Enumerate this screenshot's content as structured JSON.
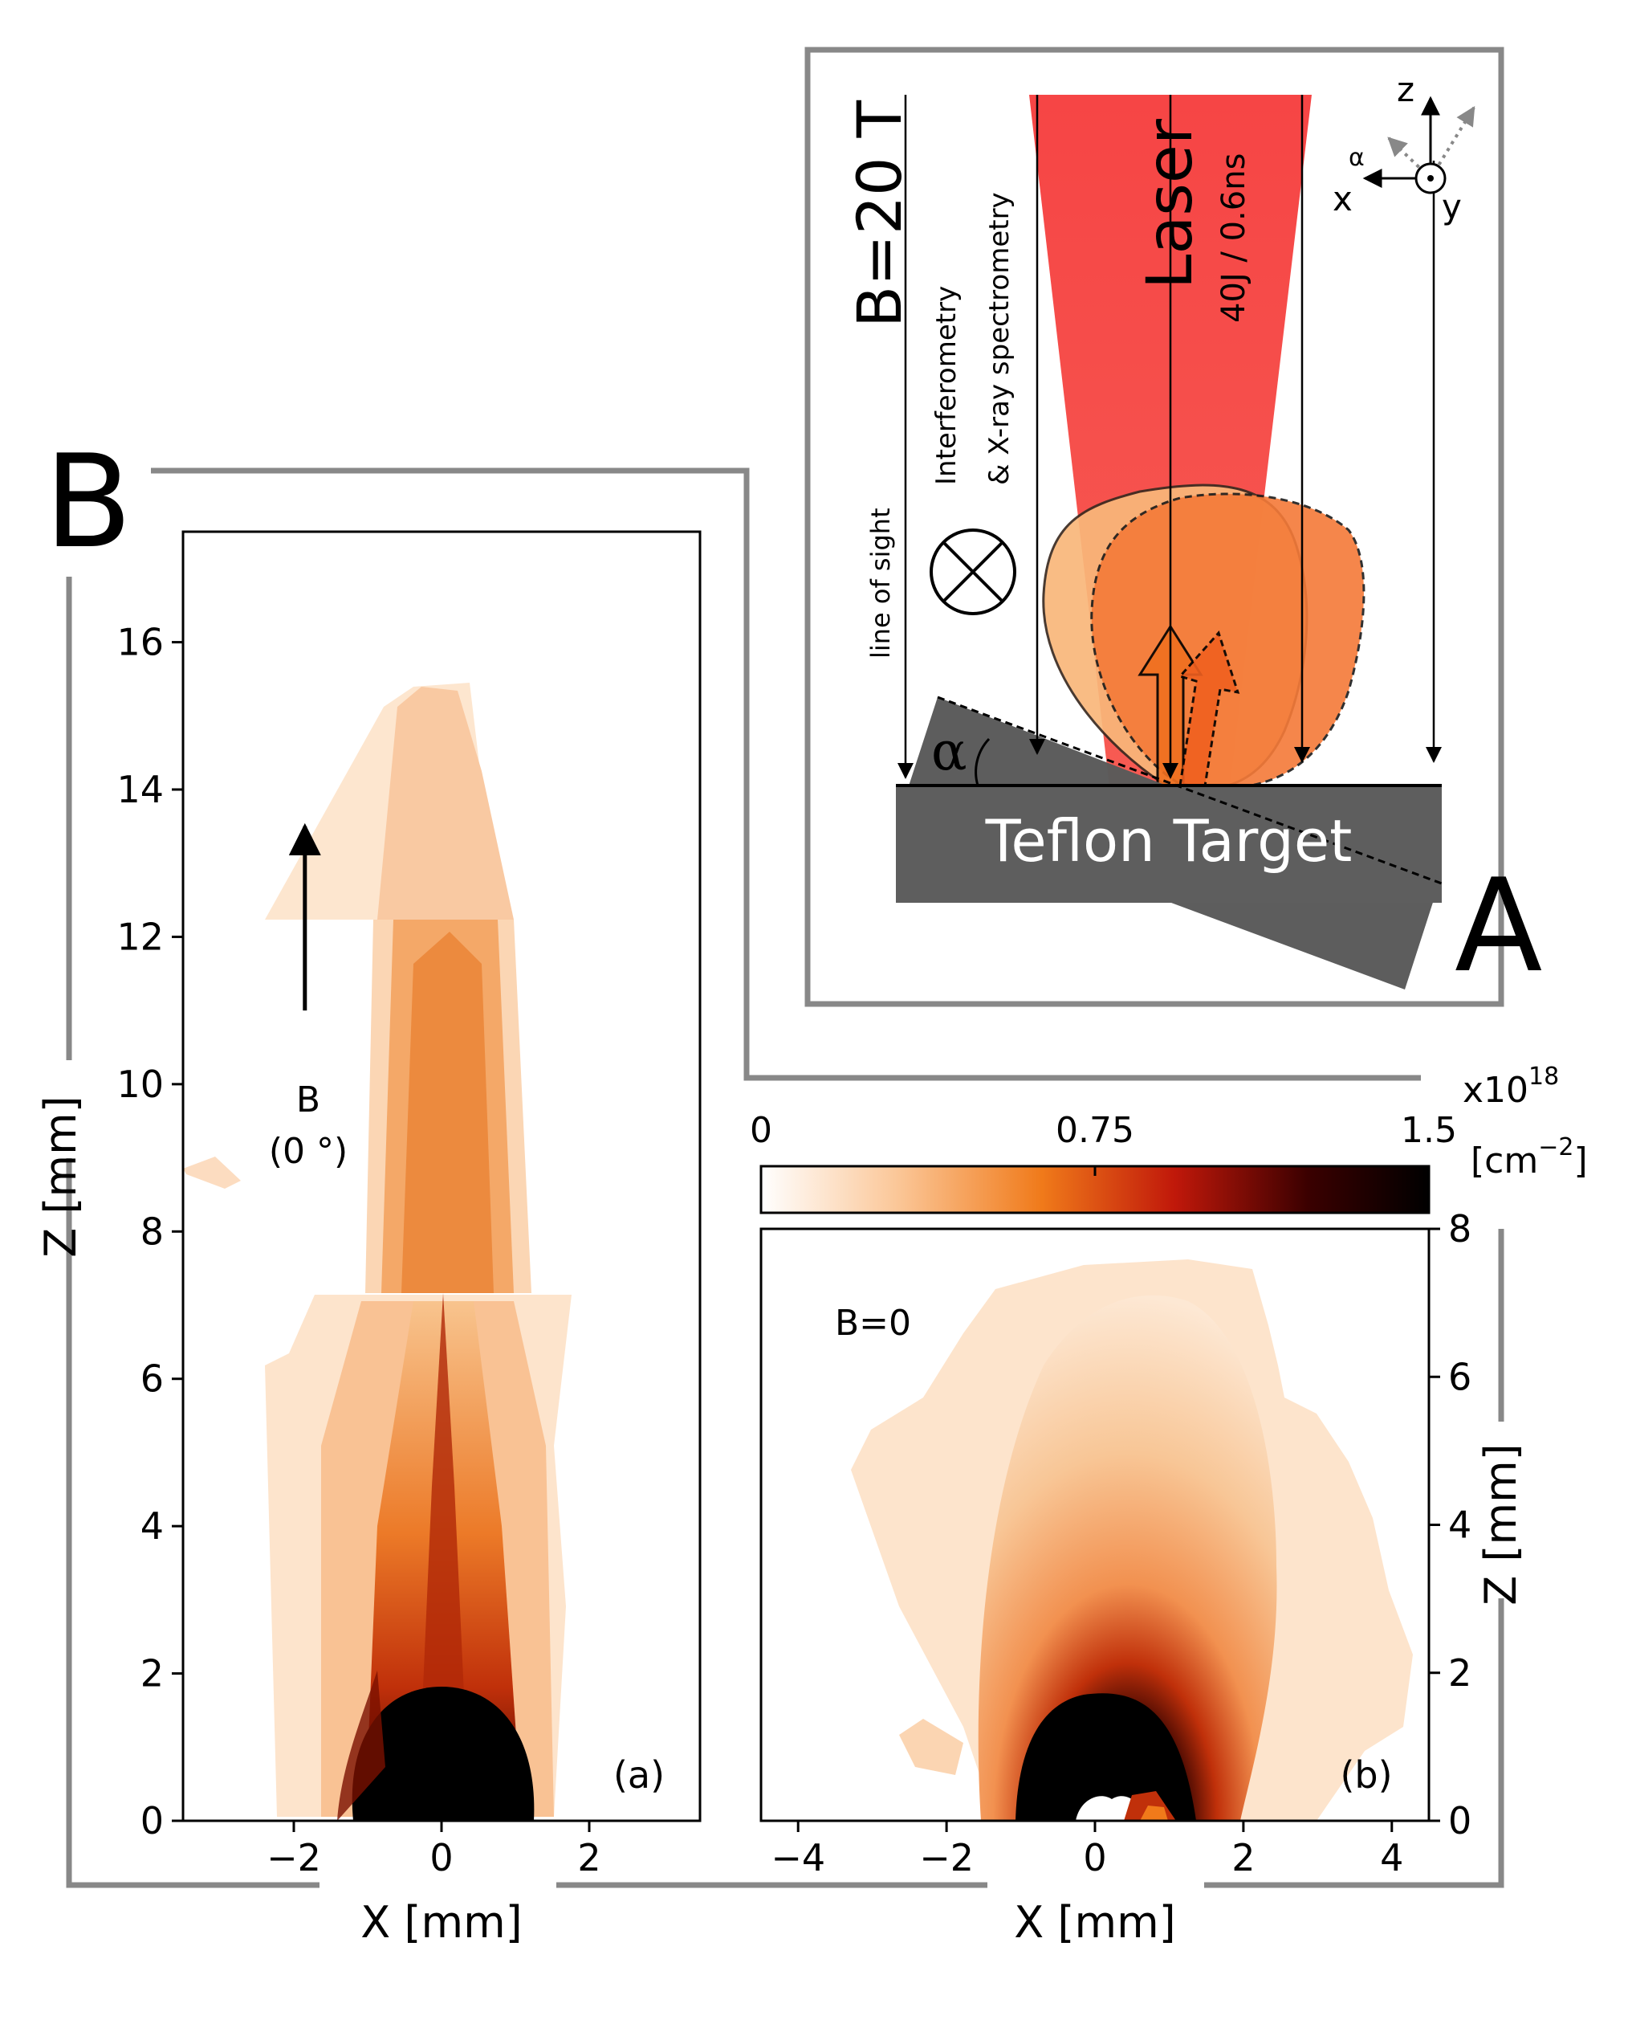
{
  "panel_labels": {
    "a_big": "A",
    "b_big": "B"
  },
  "schematic": {
    "field_label": "B=20 T",
    "laser_label": "Laser",
    "laser_spec": "40J / 0.6ns",
    "diag_line1": "Interferometry",
    "diag_line2": "& X-ray spectrometry",
    "los_label": "line of sight",
    "target_label": "Teflon Target",
    "angle_symbol": "α",
    "axes": {
      "z": "z",
      "x": "x",
      "y": "y",
      "alpha": "α"
    },
    "colors": {
      "laser": "#f53b3b",
      "plasma_light": "#f9b77a",
      "plasma_dark": "#f47a38",
      "target": "#5a5a5a",
      "frame": "#888888"
    }
  },
  "colorbar": {
    "ticks": [
      "0",
      "0.75",
      "1.5"
    ],
    "exponent": "x10",
    "exponent_power": "18",
    "unit": "[cm",
    "unit_power": "−2",
    "unit_close": "]",
    "gradient": [
      "#ffffff",
      "#fbc89a",
      "#f07a1a",
      "#c0180a",
      "#3a0000",
      "#000000"
    ]
  },
  "chart_data": [
    {
      "type": "heatmap",
      "panel_tag": "(a)",
      "inset_label_1": "B",
      "inset_label_2": "(0 °)",
      "xlabel": "X [mm]",
      "ylabel": "Z [mm]",
      "xlim": [
        -3.5,
        3.5
      ],
      "ylim": [
        0,
        17.5
      ],
      "x_ticks": [
        -2,
        0,
        2
      ],
      "x_tick_labels": [
        "−2",
        "0",
        "2"
      ],
      "y_ticks": [
        0,
        2,
        4,
        6,
        8,
        10,
        12,
        14,
        16
      ],
      "y_tick_labels": [
        "0",
        "2",
        "4",
        "6",
        "8",
        "10",
        "12",
        "14",
        "16"
      ],
      "field_arrow_z": [
        11.0,
        13.5
      ]
    },
    {
      "type": "heatmap",
      "panel_tag": "(b)",
      "inset_label_1": "B=0",
      "xlabel": "X [mm]",
      "ylabel": "Z [mm]",
      "xlim": [
        -4.5,
        4.5
      ],
      "ylim": [
        0,
        8
      ],
      "x_ticks": [
        -4,
        -2,
        0,
        2,
        4
      ],
      "x_tick_labels": [
        "−4",
        "−2",
        "0",
        "2",
        "4"
      ],
      "y_ticks": [
        0,
        2,
        4,
        6,
        8
      ],
      "y_tick_labels": [
        "0",
        "2",
        "4",
        "6",
        "8"
      ]
    }
  ]
}
